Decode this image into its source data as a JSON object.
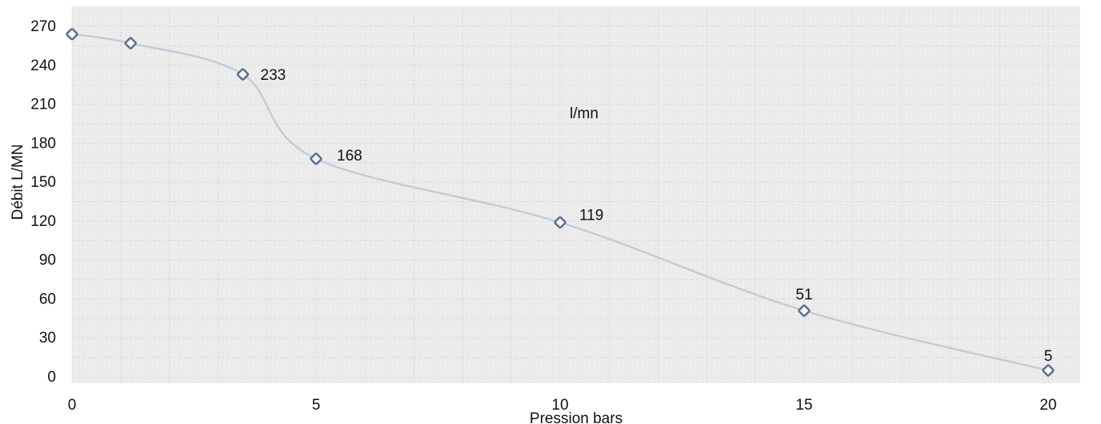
{
  "chart_data": {
    "type": "line",
    "title": "",
    "xlabel": "Pression bars",
    "ylabel": "Débit  L/MN",
    "xlim": [
      0,
      21
    ],
    "ylim": [
      0,
      270
    ],
    "x_ticks": [
      0,
      5,
      10,
      15,
      20
    ],
    "y_ticks": [
      0,
      30,
      60,
      90,
      120,
      150,
      180,
      210,
      240,
      270
    ],
    "grid": true,
    "series": [
      {
        "name": "l/mn",
        "points": [
          {
            "x": 0,
            "y": 264,
            "label": ""
          },
          {
            "x": 1.2,
            "y": 257,
            "label": ""
          },
          {
            "x": 3.5,
            "y": 233,
            "label": "233"
          },
          {
            "x": 5,
            "y": 168,
            "label": "168"
          },
          {
            "x": 10,
            "y": 119,
            "label": "119"
          },
          {
            "x": 15,
            "y": 51,
            "label": "51"
          },
          {
            "x": 20,
            "y": 5,
            "label": "5"
          }
        ]
      }
    ],
    "colors": {
      "line": "#c4ccd8",
      "marker_stroke": "#5b6f8f",
      "plot_background": "#ececec",
      "grid": "#d9d9d9"
    }
  }
}
